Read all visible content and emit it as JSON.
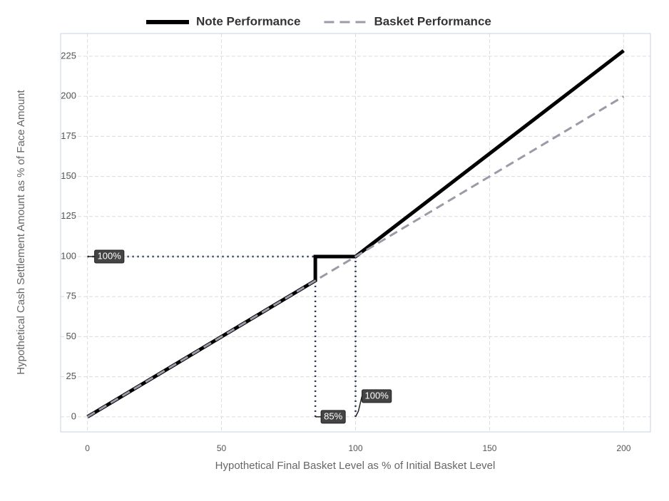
{
  "chart_data": {
    "type": "line",
    "xlabel": "Hypothetical Final Basket Level as % of Initial Basket Level",
    "ylabel": "Hypothetical Cash Settlement Amount as % of Face Amount",
    "xlim": [
      -10,
      210
    ],
    "ylim": [
      -9.4,
      239.2
    ],
    "xticks": [
      0,
      50,
      100,
      150,
      200
    ],
    "yticks": [
      0,
      25,
      50,
      75,
      100,
      125,
      150,
      175,
      200,
      225
    ],
    "grid": true,
    "legend": "top",
    "series": [
      {
        "name": "Note Performance",
        "color": "#000000",
        "style": "solid",
        "x": [
          0,
          85,
          85,
          100,
          200
        ],
        "values": [
          0,
          85,
          100,
          100,
          228.5
        ]
      },
      {
        "name": "Basket Performance",
        "color": "#9a9ba6",
        "style": "dashed",
        "x": [
          0,
          200
        ],
        "values": [
          0,
          200
        ]
      }
    ],
    "reference_lines": [
      {
        "color": "#1f2d4f",
        "x": [
          0,
          100
        ],
        "y": [
          100,
          100
        ]
      },
      {
        "color": "#1f2d4f",
        "x": [
          85,
          85
        ],
        "y": [
          0,
          100
        ]
      },
      {
        "color": "#1f2d4f",
        "x": [
          100,
          100
        ],
        "y": [
          0,
          100
        ]
      }
    ],
    "annotations": [
      {
        "label": "100%",
        "x": 0,
        "y": 100
      },
      {
        "label": "85%",
        "x": 85,
        "y": 0
      },
      {
        "label": "100%",
        "x": 100,
        "y": 0
      }
    ]
  }
}
